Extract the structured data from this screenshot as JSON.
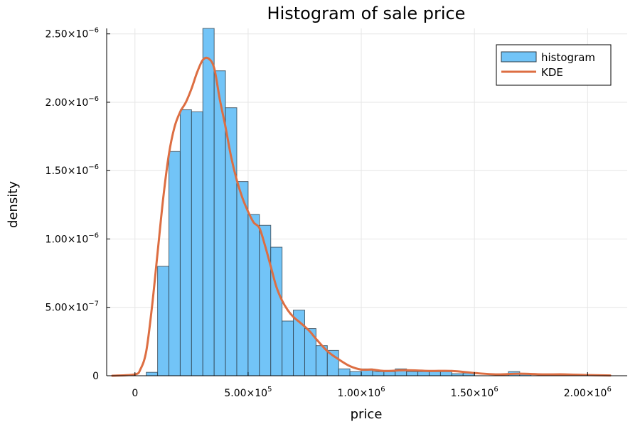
{
  "chart_data": {
    "type": "bar",
    "title": "Histogram of sale price",
    "xlabel": "price",
    "ylabel": "density",
    "xlim": [
      -125000,
      2175000
    ],
    "ylim": [
      0,
      2.54e-06
    ],
    "grid": true,
    "legend_position": "top-right",
    "colors": {
      "histogram_fill": "#72c4f7",
      "histogram_edge": "#2b3a44",
      "kde": "#dd6e42",
      "grid": "#e6e6e6",
      "axis": "#000000"
    },
    "x_ticks": [
      {
        "value": 0,
        "base": "0",
        "exp": ""
      },
      {
        "value": 500000,
        "base": "5.00×10",
        "exp": "5"
      },
      {
        "value": 1000000,
        "base": "1.00×10",
        "exp": "6"
      },
      {
        "value": 1500000,
        "base": "1.50×10",
        "exp": "6"
      },
      {
        "value": 2000000,
        "base": "2.00×10",
        "exp": "6"
      }
    ],
    "y_ticks": [
      {
        "value": 0,
        "base": "0",
        "exp": ""
      },
      {
        "value": 5e-07,
        "base": "5.00×10",
        "exp": "−7"
      },
      {
        "value": 1e-06,
        "base": "1.00×10",
        "exp": "−6"
      },
      {
        "value": 1.5e-06,
        "base": "1.50×10",
        "exp": "−6"
      },
      {
        "value": 2e-06,
        "base": "2.00×10",
        "exp": "−6"
      },
      {
        "value": 2.5e-06,
        "base": "2.50×10",
        "exp": "−6"
      }
    ],
    "series": [
      {
        "name": "histogram",
        "type": "bar",
        "bin_width": 50000,
        "bin_starts": [
          50000,
          100000,
          150000,
          200000,
          250000,
          300000,
          350000,
          400000,
          450000,
          500000,
          550000,
          600000,
          650000,
          700000,
          750000,
          800000,
          850000,
          900000,
          950000,
          1000000,
          1050000,
          1100000,
          1150000,
          1200000,
          1250000,
          1300000,
          1350000,
          1400000,
          1450000,
          1500000,
          1550000,
          1600000,
          1650000,
          1700000,
          1750000,
          1800000,
          1850000,
          1900000,
          1950000,
          2000000
        ],
        "values": [
          2.5e-08,
          8e-07,
          1.64e-06,
          1.945e-06,
          1.93e-06,
          2.54e-06,
          2.23e-06,
          1.96e-06,
          1.42e-06,
          1.18e-06,
          1.1e-06,
          9.4e-07,
          4e-07,
          4.8e-07,
          3.45e-07,
          2.2e-07,
          1.85e-07,
          5e-08,
          3e-08,
          5e-08,
          3e-08,
          3e-08,
          5e-08,
          3e-08,
          3e-08,
          3e-08,
          3e-08,
          1.5e-08,
          2e-08,
          0,
          0,
          1e-08,
          3e-08,
          1e-08,
          0,
          0,
          1e-08,
          0,
          1e-08,
          0
        ]
      },
      {
        "name": "KDE",
        "type": "line",
        "x": [
          -100000,
          0,
          25000,
          50000,
          75000,
          100000,
          125000,
          150000,
          175000,
          200000,
          225000,
          250000,
          275000,
          300000,
          325000,
          350000,
          375000,
          400000,
          425000,
          450000,
          475000,
          500000,
          525000,
          550000,
          575000,
          600000,
          625000,
          650000,
          675000,
          700000,
          725000,
          750000,
          775000,
          800000,
          850000,
          900000,
          950000,
          1000000,
          1050000,
          1100000,
          1200000,
          1300000,
          1400000,
          1500000,
          1600000,
          1700000,
          1800000,
          1900000,
          2000000,
          2100000
        ],
        "values": [
          0,
          1e-08,
          5e-08,
          1.8e-07,
          5e-07,
          9e-07,
          1.3e-06,
          1.62e-06,
          1.82e-06,
          1.93e-06,
          2e-06,
          2.1e-06,
          2.22e-06,
          2.31e-06,
          2.32e-06,
          2.25e-06,
          2.02e-06,
          1.82e-06,
          1.6e-06,
          1.43e-06,
          1.3e-06,
          1.2e-06,
          1.12e-06,
          1.08e-06,
          9.5e-07,
          8e-07,
          6.5e-07,
          5.5e-07,
          4.8e-07,
          4.3e-07,
          3.95e-07,
          3.6e-07,
          3.2e-07,
          2.7e-07,
          1.8e-07,
          1.2e-07,
          7e-08,
          4.5e-08,
          4.5e-08,
          3.5e-08,
          4e-08,
          3.5e-08,
          3.5e-08,
          2e-08,
          1e-08,
          1.5e-08,
          1e-08,
          1e-08,
          5e-09,
          2e-09
        ]
      }
    ]
  }
}
